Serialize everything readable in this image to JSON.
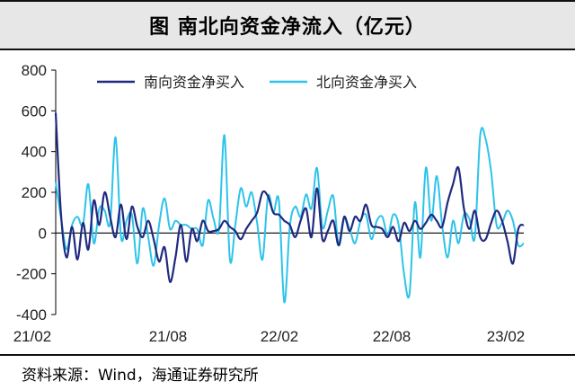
{
  "header": {
    "title": "图  南北向资金净流入（亿元）"
  },
  "footer": {
    "source": "资料来源：Wind，海通证券研究所"
  },
  "colors": {
    "south": "#1f2a80",
    "north": "#2dc3ea"
  },
  "chart_data": {
    "type": "line",
    "title": "图  南北向资金净流入（亿元）",
    "xlabel": "",
    "ylabel": "",
    "ylim": [
      -400,
      800
    ],
    "yticks": [
      -400,
      -200,
      0,
      200,
      400,
      600,
      800
    ],
    "x_ticks": [
      "21/02",
      "21/08",
      "22/02",
      "22/08",
      "23/02"
    ],
    "legend_position": "top",
    "grid": false,
    "series": [
      {
        "name": "南向资金净买入",
        "color": "#1f2a80",
        "values": [
          590,
          80,
          -120,
          30,
          -130,
          50,
          -80,
          160,
          40,
          200,
          80,
          -20,
          140,
          -30,
          130,
          30,
          -20,
          60,
          -30,
          -140,
          -70,
          -240,
          -120,
          40,
          -140,
          20,
          -40,
          60,
          10,
          10,
          20,
          60,
          30,
          10,
          -30,
          20,
          60,
          100,
          200,
          180,
          100,
          90,
          60,
          40,
          -20,
          60,
          120,
          -20,
          220,
          -30,
          10,
          60,
          -60,
          80,
          10,
          80,
          60,
          140,
          40,
          30,
          20,
          -20,
          30,
          -40,
          50,
          10,
          60,
          20,
          50,
          90,
          60,
          30,
          150,
          240,
          320,
          120,
          20,
          110,
          -20,
          -30,
          50,
          110,
          60,
          -40,
          -150,
          20,
          40
        ]
      },
      {
        "name": "北向资金净买入",
        "color": "#2dc3ea",
        "values": [
          250,
          70,
          -80,
          40,
          80,
          40,
          240,
          -50,
          120,
          110,
          50,
          470,
          -20,
          60,
          90,
          -150,
          120,
          -20,
          -160,
          40,
          170,
          20,
          60,
          40,
          40,
          20,
          20,
          -60,
          160,
          70,
          20,
          480,
          -130,
          40,
          220,
          130,
          200,
          50,
          -130,
          180,
          100,
          160,
          -340,
          30,
          130,
          80,
          190,
          120,
          320,
          30,
          110,
          180,
          -60,
          70,
          20,
          -50,
          60,
          90,
          -30,
          60,
          80,
          -10,
          90,
          40,
          -200,
          -300,
          150,
          -120,
          320,
          60,
          280,
          40,
          -120,
          60,
          -50,
          90,
          70,
          -20,
          480,
          460,
          300,
          40,
          50,
          110,
          60,
          -60,
          -50
        ]
      }
    ]
  }
}
